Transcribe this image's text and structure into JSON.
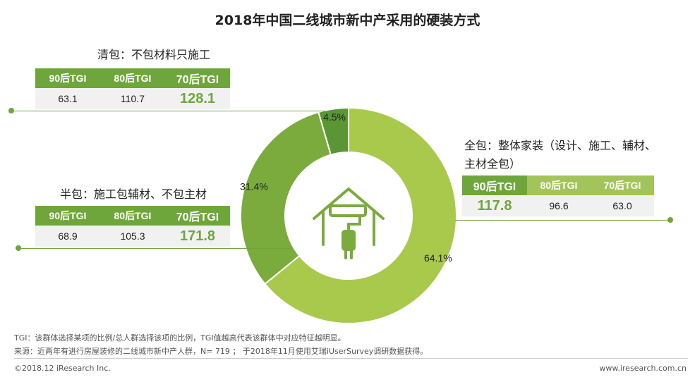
{
  "title": "2018年中国二线城市新中产采用的硬装方式",
  "chart_data": {
    "type": "pie",
    "donut": true,
    "categories": [
      "全包：整体家装（设计、施工、辅材、主材全包）",
      "半包：施工包辅材、不包主材",
      "清包：不包材料只施工"
    ],
    "values": [
      64.1,
      31.4,
      4.5
    ],
    "value_labels": [
      "64.1%",
      "31.4%",
      "4.5%"
    ],
    "colors": [
      "#a9c94c",
      "#7aab3c",
      "#5a9636"
    ]
  },
  "segments": {
    "qingbao": {
      "label": "清包：不包材料只施工",
      "headers": [
        "90后TGI",
        "80后TGI",
        "70后TGI"
      ],
      "values": [
        "63.1",
        "110.7",
        "128.1"
      ]
    },
    "banbao": {
      "label": "半包：施工包辅材、不包主材",
      "headers": [
        "90后TGI",
        "80后TGI",
        "70后TGI"
      ],
      "values": [
        "68.9",
        "105.3",
        "171.8"
      ]
    },
    "quanbao": {
      "label_line1": "全包：整体家装（设计、施工、辅材、",
      "label_line2": "主材全包）",
      "headers": [
        "90后TGI",
        "80后TGI",
        "70后TGI"
      ],
      "values": [
        "117.8",
        "96.6",
        "63.0"
      ]
    }
  },
  "notes": {
    "tgi": "TGI：该群体选择某项的比例/总人群选择该项的比例，TGI值越高代表该群体中对应特征越明显。",
    "source": "来源：近两年有进行房屋装修的二线城市新中产人群，N= 719 ； 于2018年11月使用艾瑞iUserSurvey调研数据获得。"
  },
  "footer": {
    "copyright": "©2018.12 iResearch Inc.",
    "website": "www.iresearch.com.cn"
  },
  "icons": [
    "house-paint-roller-icon"
  ]
}
